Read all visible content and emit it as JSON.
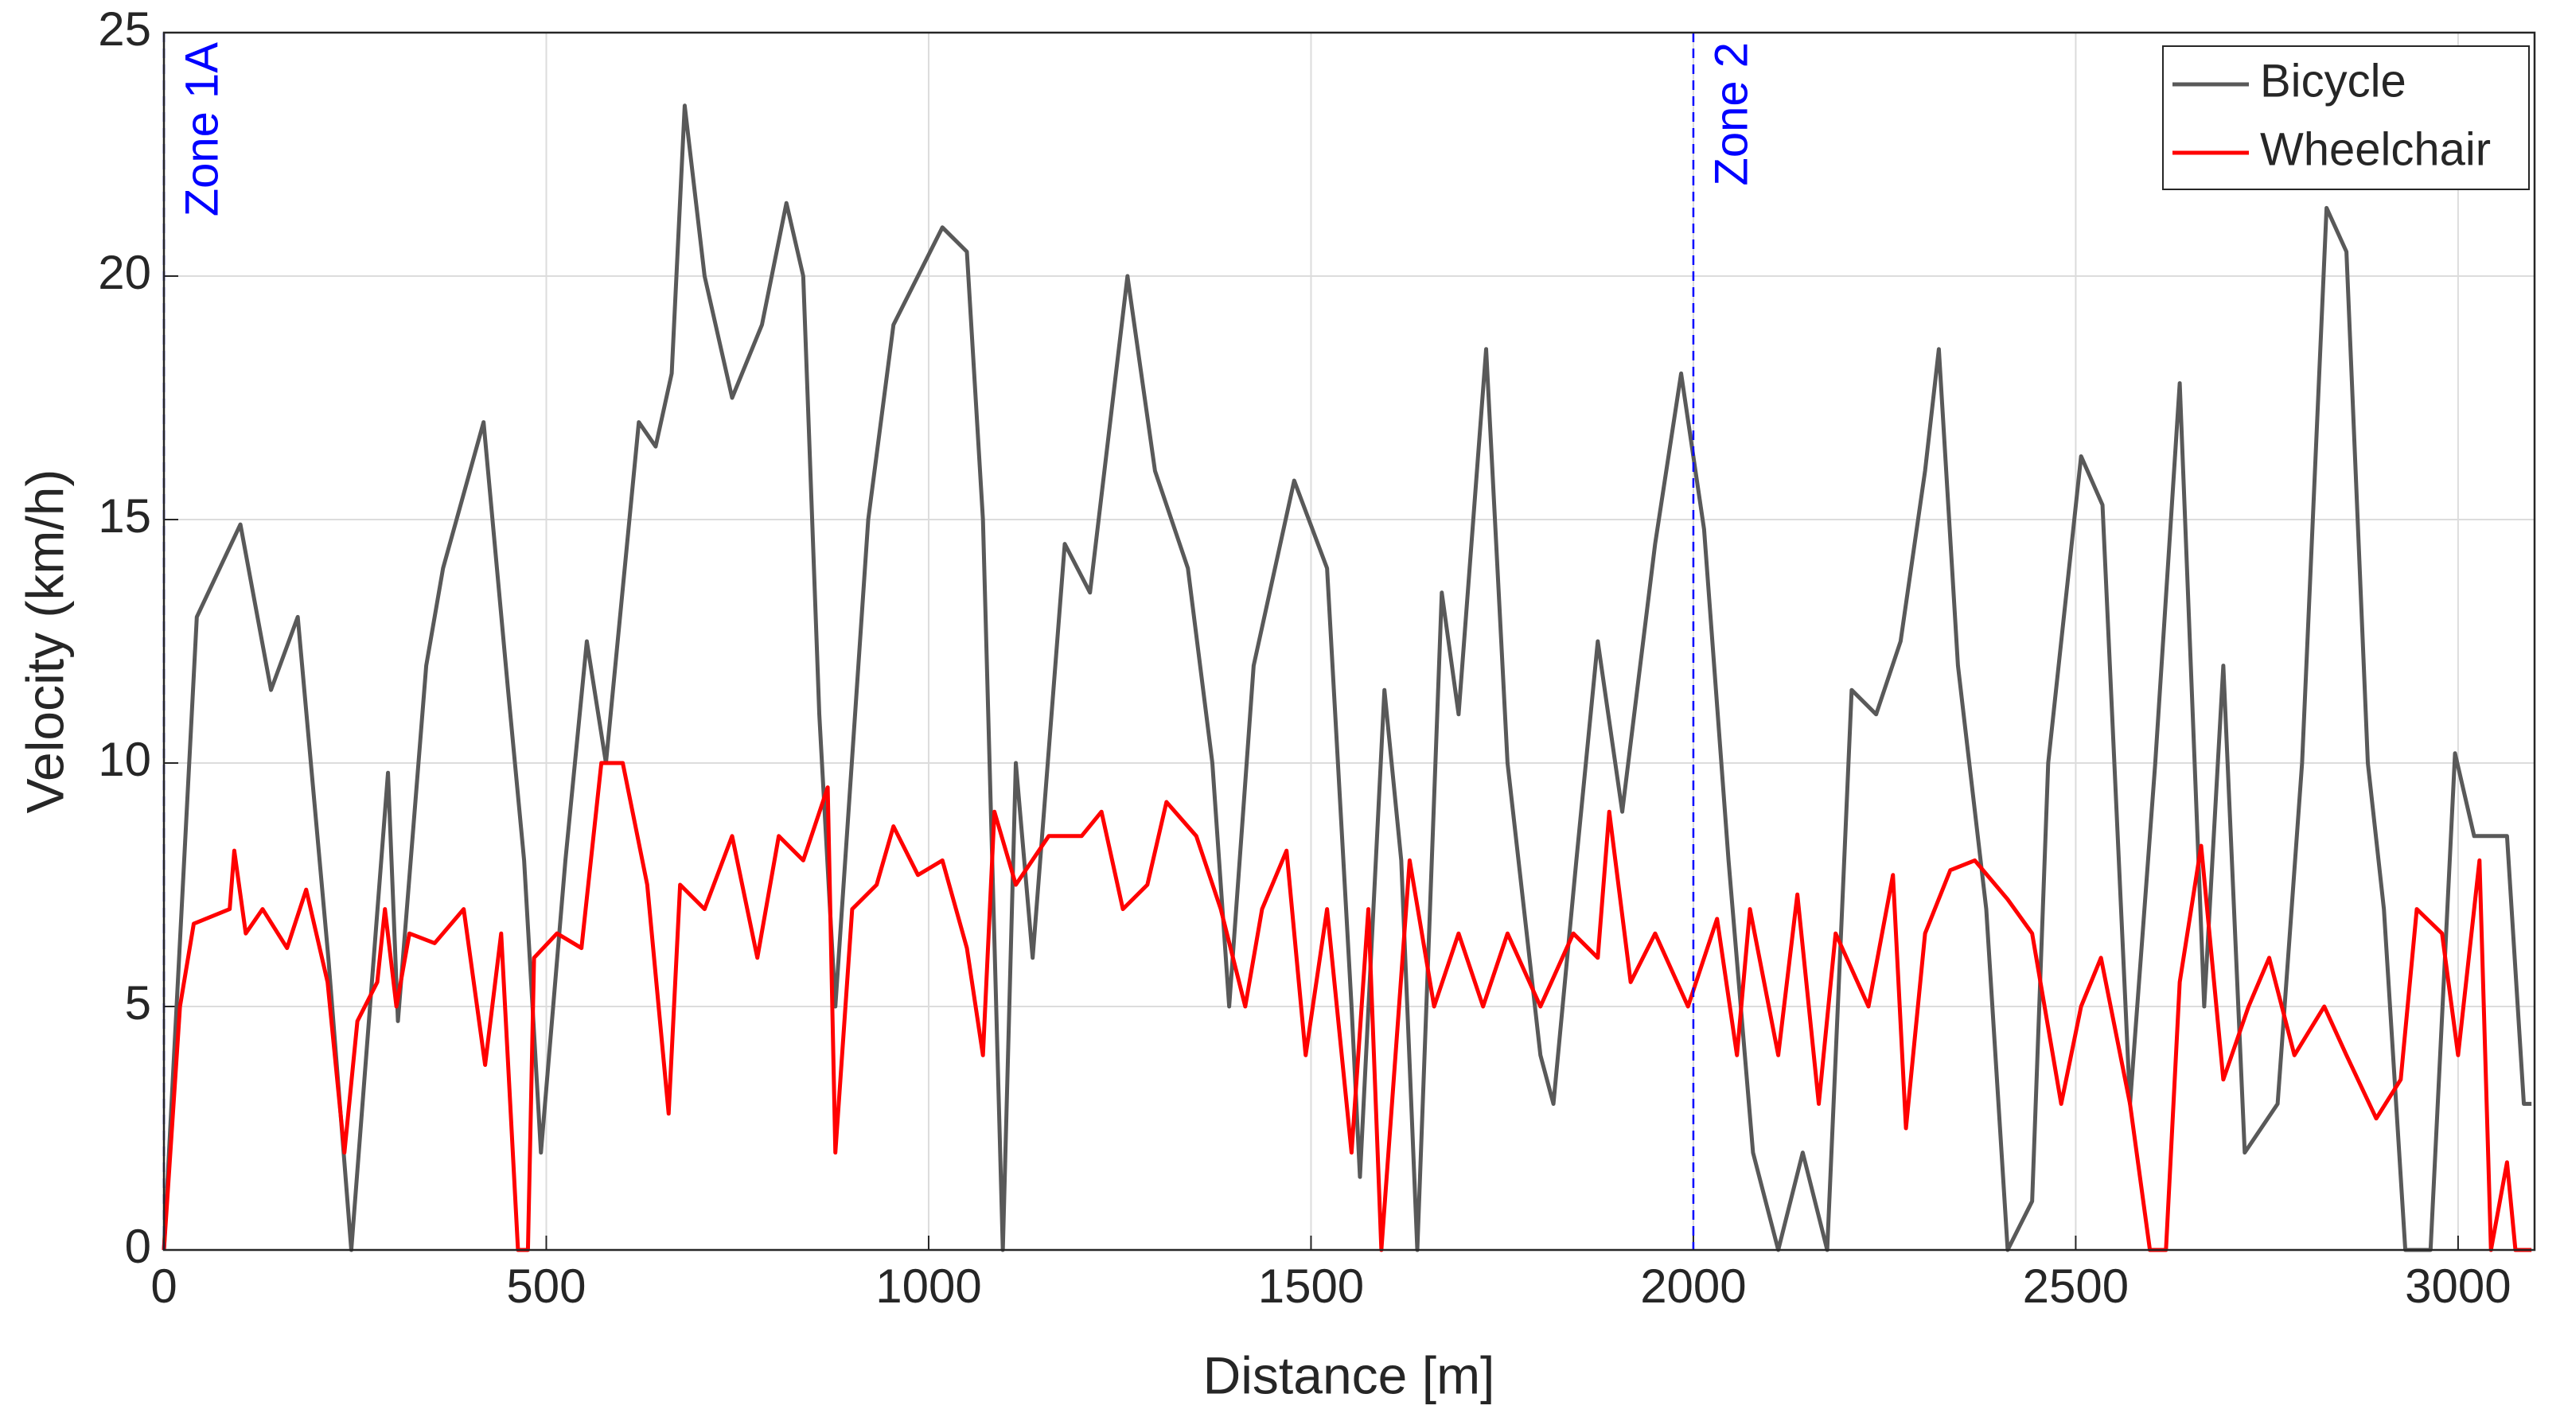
{
  "chart_data": {
    "type": "line",
    "xlabel": "Distance [m]",
    "ylabel": "Velocity (km/h)",
    "xlim": [
      0,
      3100
    ],
    "ylim": [
      0,
      25
    ],
    "xticks": [
      0,
      500,
      1000,
      1500,
      2000,
      2500,
      3000
    ],
    "yticks": [
      0,
      5,
      10,
      15,
      20,
      25
    ],
    "grid": true,
    "legend": "upper right",
    "annotations": [
      {
        "x": 0,
        "text": "Zone 1A",
        "color": "#0000ff"
      },
      {
        "x": 2000,
        "text": "Zone 2",
        "color": "#0000ff"
      }
    ],
    "series": [
      {
        "name": "Bicycle",
        "color": "#595959",
        "x": [
          0,
          43,
          100,
          140,
          175,
          215,
          245,
          293,
          306,
          343,
          365,
          418,
          450,
          471,
          493,
          525,
          553,
          578,
          621,
          643,
          664,
          681,
          707,
          743,
          782,
          814,
          836,
          857,
          878,
          921,
          954,
          986,
          1018,
          1050,
          1071,
          1097,
          1114,
          1136,
          1178,
          1211,
          1260,
          1296,
          1339,
          1371,
          1393,
          1425,
          1478,
          1521,
          1553,
          1564,
          1596,
          1618,
          1639,
          1671,
          1693,
          1729,
          1757,
          1800,
          1817,
          1847,
          1875,
          1907,
          1950,
          1984,
          2014,
          2046,
          2078,
          2111,
          2143,
          2175,
          2207,
          2239,
          2271,
          2303,
          2321,
          2346,
          2383,
          2411,
          2443,
          2464,
          2507,
          2535,
          2571,
          2604,
          2636,
          2668,
          2693,
          2721,
          2764,
          2796,
          2828,
          2854,
          2882,
          2903,
          2931,
          2964,
          2996,
          3021,
          3064,
          3086,
          3096
        ],
        "values": [
          0,
          13,
          14.9,
          11.5,
          13,
          6,
          0,
          9.8,
          4.7,
          12,
          14,
          17,
          11.5,
          8,
          2,
          8,
          12.5,
          10,
          17,
          16.5,
          18,
          23.5,
          20,
          17.5,
          19,
          21.5,
          20,
          11,
          5,
          15,
          19,
          20,
          21,
          20.5,
          15,
          0,
          10,
          6,
          14.5,
          13.5,
          20,
          16,
          14,
          10,
          5,
          12,
          15.8,
          14,
          5,
          1.5,
          11.5,
          8,
          0,
          13.5,
          11,
          18.5,
          10,
          4,
          3,
          8,
          12.5,
          9,
          14.5,
          18,
          14.8,
          8,
          2,
          0,
          2,
          0,
          11.5,
          11,
          12.5,
          16,
          18.5,
          12,
          7,
          0,
          1,
          10,
          16.3,
          15.3,
          3,
          10,
          17.8,
          5,
          12,
          2,
          3,
          10,
          21.4,
          20.5,
          10,
          7,
          0,
          0,
          10.2,
          8.5,
          8.5,
          3,
          3
        ]
      },
      {
        "name": "Wheelchair",
        "color": "#ff0000",
        "x": [
          0,
          21,
          39,
          86,
          92,
          107,
          129,
          161,
          186,
          214,
          236,
          253,
          279,
          289,
          304,
          321,
          354,
          392,
          420,
          441,
          463,
          476,
          484,
          514,
          546,
          572,
          600,
          632,
          660,
          675,
          707,
          743,
          776,
          804,
          836,
          868,
          878,
          900,
          932,
          954,
          986,
          1018,
          1050,
          1071,
          1086,
          1114,
          1157,
          1200,
          1226,
          1254,
          1286,
          1311,
          1350,
          1382,
          1414,
          1436,
          1468,
          1493,
          1521,
          1553,
          1575,
          1592,
          1629,
          1661,
          1693,
          1725,
          1757,
          1800,
          1843,
          1875,
          1890,
          1918,
          1950,
          1993,
          2031,
          2057,
          2074,
          2111,
          2136,
          2164,
          2186,
          2229,
          2261,
          2278,
          2303,
          2336,
          2368,
          2411,
          2443,
          2481,
          2507,
          2533,
          2571,
          2597,
          2618,
          2636,
          2664,
          2693,
          2726,
          2753,
          2786,
          2825,
          2854,
          2893,
          2925,
          2946,
          2979,
          3000,
          3028,
          3043,
          3064,
          3075,
          3096
        ],
        "values": [
          0,
          5,
          6.7,
          7,
          8.2,
          6.5,
          7,
          6.2,
          7.4,
          5.5,
          2,
          4.7,
          5.5,
          7,
          5,
          6.5,
          6.3,
          7,
          3.8,
          6.5,
          0,
          0,
          6,
          6.5,
          6.2,
          10,
          10,
          7.5,
          2.8,
          7.5,
          7,
          8.5,
          6,
          8.5,
          8,
          9.5,
          2,
          7,
          7.5,
          8.7,
          7.7,
          8,
          6.2,
          4,
          9,
          7.5,
          8.5,
          8.5,
          9,
          7,
          7.5,
          9.2,
          8.5,
          7,
          5,
          7,
          8.2,
          4,
          7,
          2,
          7,
          0,
          8,
          5,
          6.5,
          5,
          6.5,
          5,
          6.5,
          6,
          9,
          5.5,
          6.5,
          5,
          6.8,
          4,
          7,
          4,
          7.3,
          3,
          6.5,
          5,
          7.7,
          2.5,
          6.5,
          7.8,
          8,
          7.2,
          6.5,
          3,
          5,
          6,
          3,
          0,
          0,
          5.5,
          8.3,
          3.5,
          5,
          6,
          4,
          5,
          4,
          2.7,
          3.5,
          7,
          6.5,
          4,
          8,
          0,
          1.8,
          0,
          0
        ]
      }
    ]
  }
}
